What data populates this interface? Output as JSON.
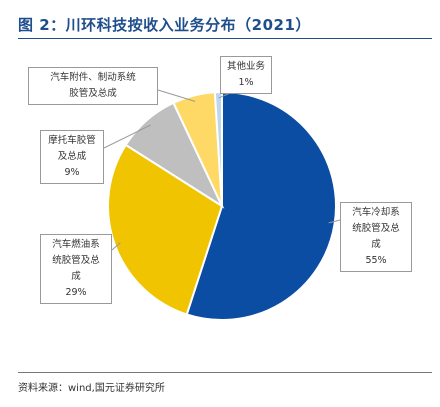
{
  "title": "图 2：川环科技按收入业务分布（2021）",
  "source": "资料来源：wind,国元证券研究所",
  "chart_data": {
    "type": "pie",
    "title": "图 2：川环科技按收入业务分布（2021）",
    "slices": [
      {
        "label": "汽车冷却系统胶管及总成",
        "value": 55,
        "value_label": "55%",
        "color": "#0b4da2"
      },
      {
        "label": "汽车燃油系统胶管及总成",
        "value": 29,
        "value_label": "29%",
        "color": "#f0c400"
      },
      {
        "label": "摩托车胶管及总成",
        "value": 9,
        "value_label": "9%",
        "color": "#bfbfbf"
      },
      {
        "label": "汽车附件、制动系统胶管及总成",
        "value": 6,
        "value_label": "",
        "color": "#ffd966"
      },
      {
        "label": "其他业务",
        "value": 1,
        "value_label": "1%",
        "color": "#bdd7ee"
      }
    ],
    "callouts": [
      {
        "lines": [
          "汽车冷却系",
          "统胶管及总",
          "成",
          "55%"
        ]
      },
      {
        "lines": [
          "汽车燃油系",
          "统胶管及总",
          "成",
          "29%"
        ]
      },
      {
        "lines": [
          "摩托车胶管",
          "及总成",
          "9%"
        ]
      },
      {
        "lines": [
          "汽车附件、制动系统",
          "胶管及总成"
        ]
      },
      {
        "lines": [
          "其他业务",
          "1%"
        ]
      }
    ],
    "start_angle_deg": 0,
    "direction": "clockwise"
  }
}
